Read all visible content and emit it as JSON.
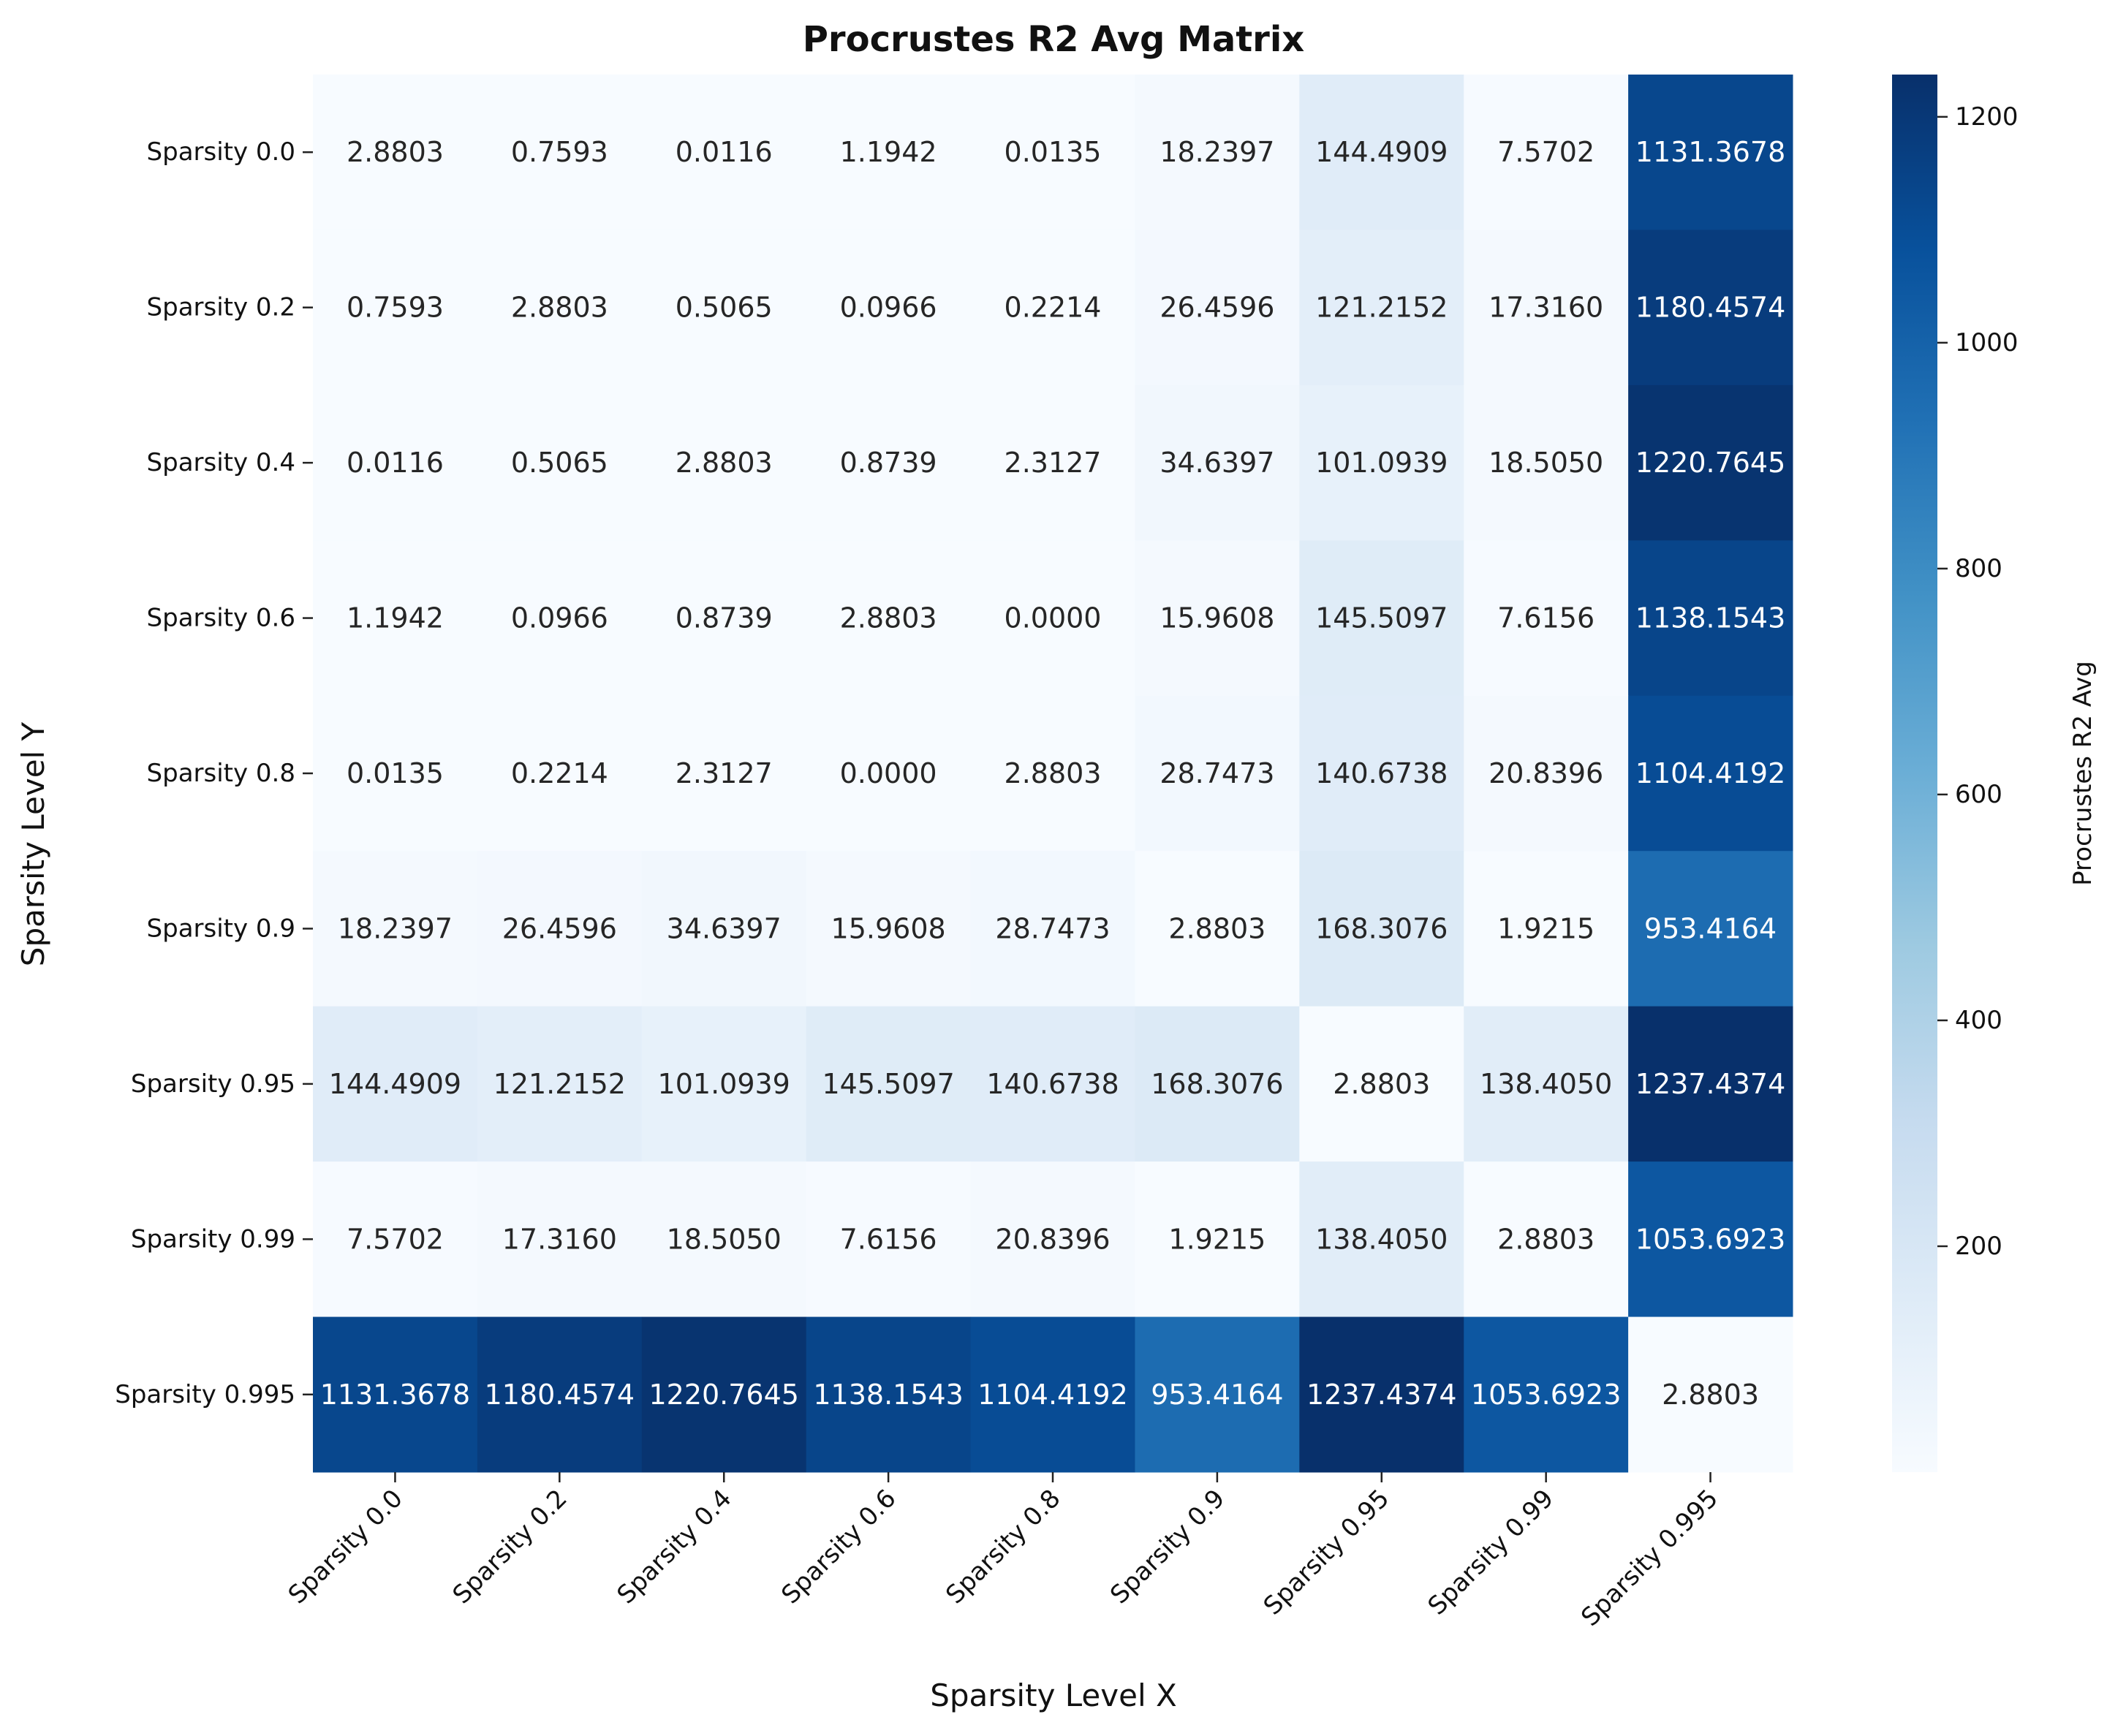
{
  "chart_data": {
    "type": "heatmap",
    "title": "Procrustes R2 Avg Matrix",
    "xlabel": "Sparsity Level X",
    "ylabel": "Sparsity Level Y",
    "x_categories": [
      "Sparsity 0.0",
      "Sparsity 0.2",
      "Sparsity 0.4",
      "Sparsity 0.6",
      "Sparsity 0.8",
      "Sparsity 0.9",
      "Sparsity 0.95",
      "Sparsity 0.99",
      "Sparsity 0.995"
    ],
    "y_categories": [
      "Sparsity 0.0",
      "Sparsity 0.2",
      "Sparsity 0.4",
      "Sparsity 0.6",
      "Sparsity 0.8",
      "Sparsity 0.9",
      "Sparsity 0.95",
      "Sparsity 0.99",
      "Sparsity 0.995"
    ],
    "values": [
      [
        2.8803,
        0.7593,
        0.0116,
        1.1942,
        0.0135,
        18.2397,
        144.4909,
        7.5702,
        1131.3678
      ],
      [
        0.7593,
        2.8803,
        0.5065,
        0.0966,
        0.2214,
        26.4596,
        121.2152,
        17.316,
        1180.4574
      ],
      [
        0.0116,
        0.5065,
        2.8803,
        0.8739,
        2.3127,
        34.6397,
        101.0939,
        18.505,
        1220.7645
      ],
      [
        1.1942,
        0.0966,
        0.8739,
        2.8803,
        0.0,
        15.9608,
        145.5097,
        7.6156,
        1138.1543
      ],
      [
        0.0135,
        0.2214,
        2.3127,
        0.0,
        2.8803,
        28.7473,
        140.6738,
        20.8396,
        1104.4192
      ],
      [
        18.2397,
        26.4596,
        34.6397,
        15.9608,
        28.7473,
        2.8803,
        168.3076,
        1.9215,
        953.4164
      ],
      [
        144.4909,
        121.2152,
        101.0939,
        145.5097,
        140.6738,
        168.3076,
        2.8803,
        138.405,
        1237.4374
      ],
      [
        7.5702,
        17.316,
        18.505,
        7.6156,
        20.8396,
        1.9215,
        138.405,
        2.8803,
        1053.6923
      ],
      [
        1131.3678,
        1180.4574,
        1220.7645,
        1138.1543,
        1104.4192,
        953.4164,
        1237.4374,
        1053.6923,
        2.8803
      ]
    ],
    "value_format_decimals": 4,
    "colormap": "Blues",
    "colorbar": {
      "label": "Procrustes R2 Avg",
      "range": [
        0,
        1237.4374
      ],
      "ticks": [
        200,
        400,
        600,
        800,
        1000,
        1200
      ]
    },
    "grid": false,
    "legend": "colorbar-right"
  }
}
